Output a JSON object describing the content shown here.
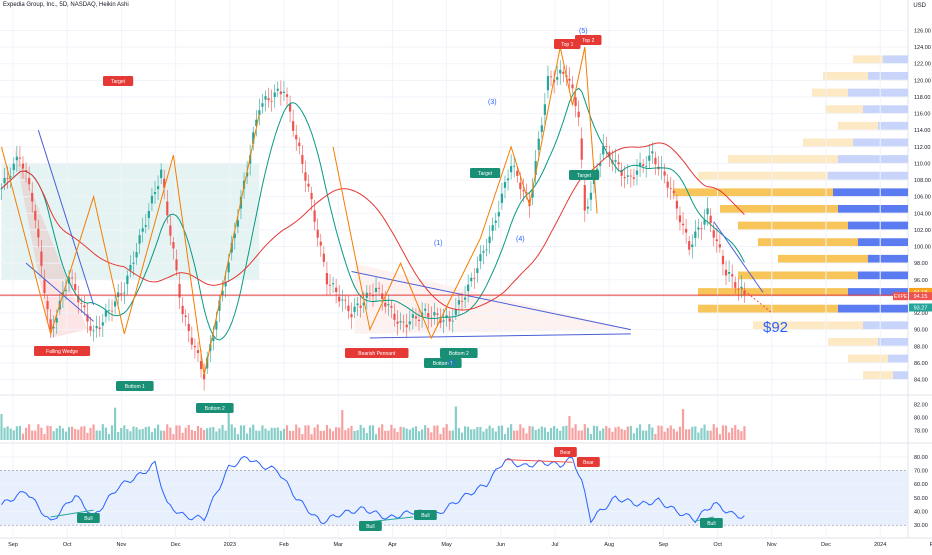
{
  "header": {
    "title": "Expedia Group, Inc., 5D, NASDAQ, Heikin Ashi",
    "currency": "USD"
  },
  "colors": {
    "bull": "#26a69a",
    "bear": "#ef5350",
    "sma_fast": "#089981",
    "sma_slow": "#e53935",
    "pattern_line": "#4a5fd8",
    "wave": "#f57c00",
    "label_red": "#e53935",
    "label_green": "#199076",
    "rsi_line": "#2962ff",
    "rsi_band": "#e8f0fd",
    "target_price": "#2962ff"
  },
  "chart_data": [
    {
      "type": "line",
      "title": "Expedia Group, Inc., 5D, NASDAQ, Heikin Ashi",
      "candle_style": "heikin-ashi",
      "x_ticks": [
        "Sep",
        "Oct",
        "Nov",
        "Dec",
        "2023",
        "Feb",
        "Mar",
        "Apr",
        "May",
        "Jun",
        "Jul",
        "Aug",
        "Sep",
        "Oct",
        "Nov",
        "Dec",
        "2024",
        "Feb"
      ],
      "y_ticks": [
        84,
        86,
        88,
        90,
        92,
        94,
        96,
        98,
        100,
        102,
        104,
        106,
        108,
        110,
        112,
        114,
        116,
        118,
        120,
        122,
        124,
        126
      ],
      "ylim": [
        82.5,
        127.5
      ],
      "price_path_key_points": [
        {
          "i": 0,
          "p": 107
        },
        {
          "i": 6,
          "p": 111
        },
        {
          "i": 10,
          "p": 106
        },
        {
          "i": 16,
          "p": 89.5
        },
        {
          "i": 22,
          "p": 96.5
        },
        {
          "i": 30,
          "p": 89.5
        },
        {
          "i": 40,
          "p": 95
        },
        {
          "i": 52,
          "p": 109
        },
        {
          "i": 59,
          "p": 92
        },
        {
          "i": 66,
          "p": 84.5
        },
        {
          "i": 74,
          "p": 98
        },
        {
          "i": 84,
          "p": 117
        },
        {
          "i": 92,
          "p": 119
        },
        {
          "i": 100,
          "p": 107
        },
        {
          "i": 106,
          "p": 96
        },
        {
          "i": 114,
          "p": 92
        },
        {
          "i": 122,
          "p": 95
        },
        {
          "i": 130,
          "p": 90.5
        },
        {
          "i": 138,
          "p": 92
        },
        {
          "i": 146,
          "p": 91
        },
        {
          "i": 152,
          "p": 95
        },
        {
          "i": 160,
          "p": 102
        },
        {
          "i": 166,
          "p": 110
        },
        {
          "i": 172,
          "p": 105
        },
        {
          "i": 178,
          "p": 120
        },
        {
          "i": 184,
          "p": 121
        },
        {
          "i": 188,
          "p": 116
        },
        {
          "i": 190,
          "p": 104
        },
        {
          "i": 196,
          "p": 112
        },
        {
          "i": 204,
          "p": 108
        },
        {
          "i": 212,
          "p": 111
        },
        {
          "i": 218,
          "p": 107
        },
        {
          "i": 224,
          "p": 100
        },
        {
          "i": 230,
          "p": 104
        },
        {
          "i": 236,
          "p": 97
        },
        {
          "i": 242,
          "p": 94.1
        }
      ],
      "series": [
        {
          "name": "EXPE",
          "last_value": 94.15
        },
        {
          "value": 94.18
        },
        {
          "value": 93.27
        }
      ],
      "horizontal_line": {
        "value": 94.15
      },
      "annotations": [
        "Target",
        "Falling Wedge",
        "Bottom 1",
        "Bottom 2",
        "Bearish Pennant",
        "Bottom 1",
        "Bottom 2",
        "(1)",
        "(2)",
        "(3)",
        "(4)",
        "(5)",
        "Target",
        "Target",
        "Top 1",
        "Top 2",
        "$92",
        "EXPE"
      ],
      "target_price": "$92"
    },
    {
      "type": "bar",
      "y_ticks": [
        78.0,
        80.0,
        82.0
      ]
    },
    {
      "type": "line",
      "y_ticks": [
        30.0,
        40.0,
        50.0,
        60.0,
        70.0,
        80.0
      ],
      "ylim": [
        25,
        85
      ],
      "band": [
        30,
        70
      ],
      "labels": [
        "Bull",
        "Bull",
        "Bull",
        "Bull",
        "Bear",
        "Bear",
        "Bull"
      ],
      "key_points": [
        {
          "i": 0,
          "v": 45
        },
        {
          "i": 8,
          "v": 55
        },
        {
          "i": 16,
          "v": 32
        },
        {
          "i": 24,
          "v": 52
        },
        {
          "i": 30,
          "v": 36
        },
        {
          "i": 38,
          "v": 58
        },
        {
          "i": 46,
          "v": 68
        },
        {
          "i": 50,
          "v": 75
        },
        {
          "i": 54,
          "v": 45
        },
        {
          "i": 60,
          "v": 36
        },
        {
          "i": 66,
          "v": 35
        },
        {
          "i": 74,
          "v": 72
        },
        {
          "i": 80,
          "v": 80
        },
        {
          "i": 84,
          "v": 74
        },
        {
          "i": 90,
          "v": 70
        },
        {
          "i": 96,
          "v": 50
        },
        {
          "i": 104,
          "v": 32
        },
        {
          "i": 110,
          "v": 38
        },
        {
          "i": 118,
          "v": 42
        },
        {
          "i": 126,
          "v": 35
        },
        {
          "i": 134,
          "v": 40
        },
        {
          "i": 142,
          "v": 38
        },
        {
          "i": 150,
          "v": 50
        },
        {
          "i": 158,
          "v": 60
        },
        {
          "i": 164,
          "v": 78
        },
        {
          "i": 170,
          "v": 73
        },
        {
          "i": 176,
          "v": 76
        },
        {
          "i": 182,
          "v": 74
        },
        {
          "i": 186,
          "v": 79
        },
        {
          "i": 189,
          "v": 62
        },
        {
          "i": 192,
          "v": 34
        },
        {
          "i": 200,
          "v": 50
        },
        {
          "i": 208,
          "v": 45
        },
        {
          "i": 214,
          "v": 48
        },
        {
          "i": 220,
          "v": 40
        },
        {
          "i": 226,
          "v": 34
        },
        {
          "i": 232,
          "v": 46
        },
        {
          "i": 238,
          "v": 38
        },
        {
          "i": 242,
          "v": 36
        }
      ]
    }
  ]
}
